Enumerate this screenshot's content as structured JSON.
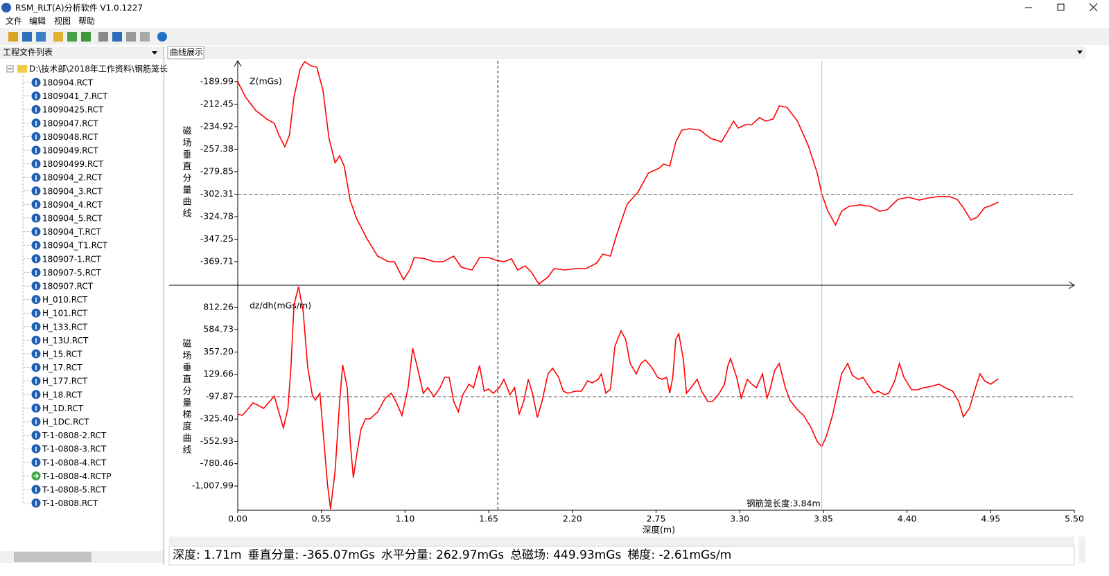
{
  "window": {
    "title": "RSM_RLT(A)分析软件 V1.0.1227"
  },
  "menu": [
    "文件",
    "编辑",
    "视图",
    "帮助"
  ],
  "file_panel": {
    "title": "工程文件列表",
    "root": "D:\\技术部\\2018年工作资料\\钢筋笼长",
    "files": [
      {
        "name": "180904.RCT",
        "icon": "info"
      },
      {
        "name": "1809041_7.RCT",
        "icon": "info"
      },
      {
        "name": "18090425.RCT",
        "icon": "info"
      },
      {
        "name": "1809047.RCT",
        "icon": "info"
      },
      {
        "name": "1809048.RCT",
        "icon": "info"
      },
      {
        "name": "1809049.RCT",
        "icon": "info"
      },
      {
        "name": "18090499.RCT",
        "icon": "info"
      },
      {
        "name": "180904_2.RCT",
        "icon": "info"
      },
      {
        "name": "180904_3.RCT",
        "icon": "info"
      },
      {
        "name": "180904_4.RCT",
        "icon": "info"
      },
      {
        "name": "180904_5.RCT",
        "icon": "info"
      },
      {
        "name": "180904_T.RCT",
        "icon": "info"
      },
      {
        "name": "180904_T1.RCT",
        "icon": "info"
      },
      {
        "name": "180907-1.RCT",
        "icon": "info"
      },
      {
        "name": "180907-5.RCT",
        "icon": "info"
      },
      {
        "name": "180907.RCT",
        "icon": "info"
      },
      {
        "name": "H_010.RCT",
        "icon": "info"
      },
      {
        "name": "H_101.RCT",
        "icon": "info"
      },
      {
        "name": "H_133.RCT",
        "icon": "info"
      },
      {
        "name": "H_13U.RCT",
        "icon": "info"
      },
      {
        "name": "H_15.RCT",
        "icon": "info"
      },
      {
        "name": "H_17.RCT",
        "icon": "info"
      },
      {
        "name": "H_177.RCT",
        "icon": "info"
      },
      {
        "name": "H_18.RCT",
        "icon": "info"
      },
      {
        "name": "H_1D.RCT",
        "icon": "info"
      },
      {
        "name": "H_1DC.RCT",
        "icon": "info"
      },
      {
        "name": "T-1-0808-2.RCT",
        "icon": "info"
      },
      {
        "name": "T-1-0808-3.RCT",
        "icon": "info"
      },
      {
        "name": "T-1-0808-4.RCT",
        "icon": "info"
      },
      {
        "name": "T-1-0808-4.RCTP",
        "icon": "arrow"
      },
      {
        "name": "T-1-0808-5.RCT",
        "icon": "info"
      },
      {
        "name": "T-1-0808.RCT",
        "icon": "info"
      }
    ]
  },
  "tab": "曲线展示",
  "chart_data": [
    {
      "type": "line",
      "ylabel": "磁场垂直分量曲线",
      "xlim": [
        0,
        5.5
      ],
      "ylim": [
        -393.2,
        -169.3
      ],
      "yticks": [
        -189.99,
        -212.45,
        -234.92,
        -257.38,
        -279.85,
        -302.31,
        -324.78,
        -347.25,
        -369.71
      ],
      "hline": -302.31,
      "x": [
        0,
        0.05,
        0.12,
        0.19,
        0.24,
        0.27,
        0.31,
        0.34,
        0.37,
        0.41,
        0.44,
        0.48,
        0.52,
        0.56,
        0.6,
        0.64,
        0.67,
        0.7,
        0.74,
        0.78,
        0.85,
        0.92,
        0.99,
        1.03,
        1.09,
        1.13,
        1.16,
        1.22,
        1.29,
        1.35,
        1.42,
        1.47,
        1.54,
        1.59,
        1.65,
        1.7,
        1.75,
        1.8,
        1.84,
        1.89,
        1.93,
        1.98,
        2.04,
        2.08,
        2.15,
        2.22,
        2.29,
        2.36,
        2.4,
        2.45,
        2.49,
        2.56,
        2.63,
        2.7,
        2.77,
        2.8,
        2.84,
        2.88,
        2.92,
        2.97,
        3.04,
        3.11,
        3.18,
        3.22,
        3.26,
        3.29,
        3.34,
        3.38,
        3.43,
        3.47,
        3.52,
        3.56,
        3.61,
        3.68,
        3.75,
        3.81,
        3.84,
        3.88,
        3.93,
        3.97,
        4.02,
        4.09,
        4.16,
        4.22,
        4.27,
        4.34,
        4.41,
        4.48,
        4.54,
        4.61,
        4.68,
        4.73,
        4.77,
        4.82,
        4.86,
        4.91,
        4.95,
        5.0
      ],
      "series": [
        {
          "name": "Z(mGs)",
          "color": "#ff0000",
          "values": [
            -190.0,
            -205.2,
            -219.0,
            -227.3,
            -231.5,
            -243.2,
            -255.0,
            -243.2,
            -205.2,
            -177.6,
            -170.0,
            -174.1,
            -175.5,
            -198.3,
            -246.7,
            -270.9,
            -264.0,
            -274.3,
            -308.9,
            -326.2,
            -346.9,
            -364.2,
            -369.7,
            -369.7,
            -387.7,
            -378.0,
            -365.6,
            -366.3,
            -369.7,
            -369.7,
            -364.2,
            -375.2,
            -378.0,
            -365.6,
            -365.6,
            -368.3,
            -369.7,
            -366.9,
            -378.0,
            -373.9,
            -380.1,
            -392.0,
            -384.9,
            -376.6,
            -378.0,
            -376.6,
            -376.6,
            -371.1,
            -362.1,
            -364.2,
            -343.4,
            -312.3,
            -300.6,
            -281.2,
            -276.4,
            -272.3,
            -274.3,
            -250.1,
            -238.4,
            -237.0,
            -238.4,
            -246.7,
            -250.1,
            -239.8,
            -229.4,
            -236.3,
            -232.9,
            -232.9,
            -225.9,
            -229.4,
            -227.3,
            -214.2,
            -215.6,
            -229.4,
            -253.6,
            -281.2,
            -302.3,
            -319.3,
            -333.1,
            -319.3,
            -314.4,
            -313.0,
            -314.4,
            -319.3,
            -317.9,
            -307.5,
            -305.4,
            -308.2,
            -306.1,
            -304.7,
            -304.7,
            -307.5,
            -315.8,
            -328.2,
            -325.5,
            -315.8,
            -313.7,
            -310.3
          ]
        }
      ]
    },
    {
      "type": "line",
      "ylabel": "磁场垂直分量梯度曲线",
      "xlabel": "深度(m)",
      "xlim": [
        0,
        5.5
      ],
      "xticks": [
        {
          "value": 0,
          "label": "0.00"
        },
        0.55,
        {
          "value": 1.1,
          "label": "1.10"
        },
        1.65,
        {
          "value": 2.2,
          "label": "2.20"
        },
        2.75,
        {
          "value": 3.3,
          "label": "3.30"
        },
        3.85,
        {
          "value": 4.4,
          "label": "4.40"
        },
        4.95,
        {
          "value": 5.5,
          "label": "5.50"
        }
      ],
      "ylim": [
        -1255,
        1038
      ],
      "yticks": [
        812.26,
        584.73,
        {
          "value": 357.2,
          "label": "357.20"
        },
        129.66,
        -97.87,
        {
          "value": -325.4,
          "label": "-325.40"
        },
        -552.93,
        -780.46,
        {
          "value": -1007.99,
          "label": "-1,007.99"
        }
      ],
      "hline": -97.87,
      "vlines": [
        {
          "x": 1.71,
          "color": "#000000",
          "dashed": true
        },
        {
          "x": 3.84,
          "color": "#87cefa",
          "dashed": false
        }
      ],
      "annotation": "钢筋笼长度:3.84m",
      "x": [
        0.0,
        0.03,
        0.07,
        0.1,
        0.13,
        0.17,
        0.21,
        0.24,
        0.27,
        0.3,
        0.33,
        0.35,
        0.37,
        0.4,
        0.43,
        0.46,
        0.49,
        0.51,
        0.54,
        0.56,
        0.59,
        0.61,
        0.64,
        0.67,
        0.69,
        0.72,
        0.74,
        0.76,
        0.78,
        0.81,
        0.84,
        0.87,
        0.92,
        0.97,
        1.01,
        1.04,
        1.08,
        1.12,
        1.15,
        1.18,
        1.22,
        1.25,
        1.29,
        1.33,
        1.36,
        1.39,
        1.42,
        1.45,
        1.48,
        1.52,
        1.55,
        1.59,
        1.62,
        1.65,
        1.68,
        1.72,
        1.75,
        1.79,
        1.82,
        1.85,
        1.88,
        1.91,
        1.94,
        1.97,
        2.0,
        2.04,
        2.07,
        2.11,
        2.14,
        2.17,
        2.22,
        2.26,
        2.3,
        2.33,
        2.37,
        2.39,
        2.42,
        2.45,
        2.48,
        2.52,
        2.55,
        2.58,
        2.62,
        2.65,
        2.68,
        2.72,
        2.76,
        2.79,
        2.82,
        2.84,
        2.86,
        2.88,
        2.9,
        2.93,
        2.95,
        2.98,
        3.02,
        3.05,
        3.09,
        3.12,
        3.16,
        3.2,
        3.22,
        3.24,
        3.28,
        3.31,
        3.35,
        3.38,
        3.41,
        3.45,
        3.48,
        3.5,
        3.53,
        3.56,
        3.6,
        3.63,
        3.68,
        3.72,
        3.77,
        3.81,
        3.84,
        3.87,
        3.91,
        3.94,
        3.97,
        4.01,
        4.04,
        4.08,
        4.11,
        4.14,
        4.18,
        4.21,
        4.25,
        4.28,
        4.32,
        4.35,
        4.38,
        4.43,
        4.47,
        4.51,
        4.56,
        4.61,
        4.65,
        4.7,
        4.74,
        4.77,
        4.81,
        4.85,
        4.88,
        4.91,
        4.95,
        5.0
      ],
      "series": [
        {
          "name": "dz/dh(mGs/m)",
          "color": "#ff0000",
          "values": [
            -274.2,
            -288.3,
            -217.8,
            -161.3,
            -182.5,
            -217.8,
            -147.2,
            -90.8,
            -253.0,
            -415.3,
            -217.8,
            205.5,
            840.5,
            1024.0,
            770.0,
            205.5,
            -76.7,
            -133.1,
            -62.6,
            -429.4,
            -993.8,
            -1240.7,
            -852.7,
            -147.2,
            226.7,
            -6.1,
            -570.5,
            -923.3,
            -711.6,
            -429.4,
            -323.6,
            -323.6,
            -253.0,
            -111.9,
            -62.6,
            -147.2,
            -288.3,
            -6.1,
            396.0,
            205.5,
            -62.6,
            -6.1,
            -97.8,
            -6.1,
            99.7,
            99.7,
            -147.2,
            -253.0,
            -76.7,
            29.2,
            -6.1,
            219.7,
            -41.4,
            -20.2,
            -62.6,
            -6.1,
            78.6,
            -76.7,
            -6.1,
            -274.2,
            -147.2,
            78.6,
            -76.7,
            -309.5,
            -147.2,
            134.9,
            191.4,
            99.7,
            -41.4,
            -62.6,
            -41.4,
            -41.4,
            64.5,
            43.3,
            78.6,
            134.9,
            -62.6,
            -20.2,
            417.2,
            572.4,
            487.8,
            240.8,
            134.9,
            240.8,
            276.1,
            205.5,
            99.7,
            78.6,
            99.7,
            -62.6,
            99.7,
            487.8,
            544.2,
            276.1,
            -62.6,
            -6.1,
            78.6,
            -41.4,
            -147.2,
            -147.2,
            -76.7,
            29.2,
            205.5,
            290.2,
            99.7,
            -111.9,
            78.6,
            29.2,
            -6.1,
            134.9,
            -111.9,
            -20.2,
            170.3,
            240.8,
            -6.1,
            -133.1,
            -231.8,
            -288.3,
            -415.3,
            -556.4,
            -605.8,
            -500.0,
            -288.3,
            -76.7,
            134.9,
            240.8,
            120.9,
            78.6,
            99.7,
            29.2,
            -62.6,
            -41.4,
            -76.7,
            -62.6,
            64.5,
            240.8,
            99.7,
            -27.3,
            -27.3,
            -6.1,
            8.0,
            29.2,
            -6.1,
            -41.4,
            -147.2,
            -302.4,
            -217.8,
            -6.1,
            134.9,
            64.5,
            29.2,
            85.6
          ]
        }
      ]
    }
  ],
  "status": [
    "深度: 1.71m",
    "垂直分量: -365.07mGs",
    "水平分量: 262.97mGs",
    "总磁场: 449.93mGs",
    "梯度: -2.61mGs/m"
  ]
}
